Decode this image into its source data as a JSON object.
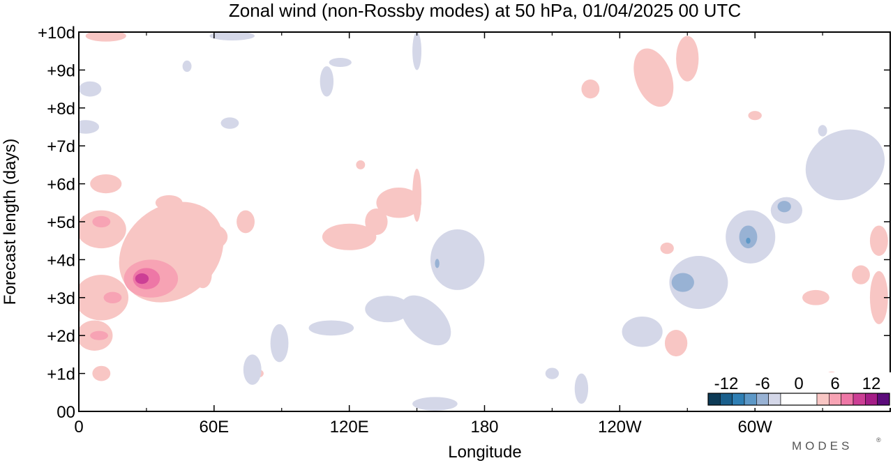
{
  "chart_data": {
    "type": "heatmap",
    "title": "Zonal wind (non-Rossby modes) at 50 hPa,  01/04/2025  00 UTC",
    "xlabel": "Longitude",
    "ylabel": "Forecast length (days)",
    "x_ticks": [
      {
        "lon": 0,
        "label": "0"
      },
      {
        "lon": 60,
        "label": "60E"
      },
      {
        "lon": 120,
        "label": "120E"
      },
      {
        "lon": 180,
        "label": "180"
      },
      {
        "lon": 240,
        "label": "120W"
      },
      {
        "lon": 300,
        "label": "60W"
      }
    ],
    "x_minor_ticks": [
      30,
      90,
      150,
      210,
      270,
      330
    ],
    "xlim": [
      0,
      360
    ],
    "y_ticks": [
      {
        "day": 0,
        "label": "00"
      },
      {
        "day": 1,
        "label": "+1d"
      },
      {
        "day": 2,
        "label": "+2d"
      },
      {
        "day": 3,
        "label": "+3d"
      },
      {
        "day": 4,
        "label": "+4d"
      },
      {
        "day": 5,
        "label": "+5d"
      },
      {
        "day": 6,
        "label": "+6d"
      },
      {
        "day": 7,
        "label": "+7d"
      },
      {
        "day": 8,
        "label": "+8d"
      },
      {
        "day": 9,
        "label": "+9d"
      },
      {
        "day": 10,
        "label": "+10d"
      }
    ],
    "ylim": [
      0,
      10
    ],
    "colorbar": {
      "labels": [
        {
          "value": -12,
          "label": "-12"
        },
        {
          "value": -6,
          "label": "-6"
        },
        {
          "value": 0,
          "label": "0"
        },
        {
          "value": 6,
          "label": "6"
        },
        {
          "value": 12,
          "label": "12"
        }
      ],
      "range": [
        -15,
        15
      ],
      "levels": [
        {
          "from": -15,
          "to": -13,
          "color": "#0d3a56"
        },
        {
          "from": -13,
          "to": -11,
          "color": "#1a5f8c"
        },
        {
          "from": -11,
          "to": -9,
          "color": "#2f7fb4"
        },
        {
          "from": -9,
          "to": -7,
          "color": "#5d98c7"
        },
        {
          "from": -7,
          "to": -5,
          "color": "#98b2d4"
        },
        {
          "from": -5,
          "to": -3,
          "color": "#d4d7e8"
        },
        {
          "from": -3,
          "to": 3,
          "color": "#ffffff"
        },
        {
          "from": 3,
          "to": 5,
          "color": "#f8c6c4"
        },
        {
          "from": 5,
          "to": 7,
          "color": "#f7a3b4"
        },
        {
          "from": 7,
          "to": 9,
          "color": "#ee77a6"
        },
        {
          "from": 9,
          "to": 11,
          "color": "#cc3f95"
        },
        {
          "from": 11,
          "to": 13,
          "color": "#a51d87"
        },
        {
          "from": 13,
          "to": 15,
          "color": "#5c0c7b"
        }
      ]
    },
    "anomalies": [
      {
        "lon": 41,
        "day": 4.2,
        "rl": 25,
        "rd": 1.2,
        "angle": -40,
        "value": 4
      },
      {
        "lon": 32,
        "day": 3.5,
        "rl": 12,
        "rd": 0.5,
        "value": 6
      },
      {
        "lon": 30,
        "day": 3.5,
        "rl": 6,
        "rd": 0.28,
        "value": 8
      },
      {
        "lon": 28,
        "day": 3.5,
        "rl": 3,
        "rd": 0.14,
        "value": 10
      },
      {
        "lon": 10,
        "day": 4.8,
        "rl": 11,
        "rd": 0.5,
        "value": 4
      },
      {
        "lon": 10,
        "day": 3.0,
        "rl": 12,
        "rd": 0.6,
        "value": 4
      },
      {
        "lon": 15,
        "day": 3.0,
        "rl": 4,
        "rd": 0.15,
        "value": 6
      },
      {
        "lon": 7,
        "day": 2.0,
        "rl": 8,
        "rd": 0.4,
        "value": 4
      },
      {
        "lon": 9,
        "day": 2.0,
        "rl": 4,
        "rd": 0.12,
        "value": 6
      },
      {
        "lon": 10,
        "day": 5.0,
        "rl": 4,
        "rd": 0.15,
        "value": 6
      },
      {
        "lon": 12,
        "day": 6.0,
        "rl": 7,
        "rd": 0.25,
        "value": 4
      },
      {
        "lon": 40,
        "day": 5.5,
        "rl": 6,
        "rd": 0.2,
        "value": 4
      },
      {
        "lon": 58,
        "day": 4.6,
        "rl": 8,
        "rd": 0.35,
        "value": 4
      },
      {
        "lon": 74,
        "day": 5.0,
        "rl": 4,
        "rd": 0.3,
        "value": 4
      },
      {
        "lon": 120,
        "day": 4.6,
        "rl": 12,
        "rd": 0.35,
        "value": 4
      },
      {
        "lon": 142,
        "day": 5.5,
        "rl": 10,
        "rd": 0.4,
        "value": 4
      },
      {
        "lon": 132,
        "day": 5.0,
        "rl": 5,
        "rd": 0.35,
        "value": 4
      },
      {
        "lon": 150,
        "day": 5.7,
        "rl": 2,
        "rd": 0.7,
        "value": 4
      },
      {
        "lon": 12,
        "day": 9.9,
        "rl": 9,
        "rd": 0.15,
        "value": 4
      },
      {
        "lon": 255,
        "day": 8.8,
        "rl": 8,
        "rd": 0.8,
        "angle": -20,
        "value": 4
      },
      {
        "lon": 270,
        "day": 9.3,
        "rl": 5,
        "rd": 0.6,
        "value": 4
      },
      {
        "lon": 227,
        "day": 8.5,
        "rl": 4,
        "rd": 0.25,
        "value": 4
      },
      {
        "lon": 265,
        "day": 1.8,
        "rl": 5,
        "rd": 0.35,
        "value": 4
      },
      {
        "lon": 327,
        "day": 3.0,
        "rl": 6,
        "rd": 0.2,
        "value": 4
      },
      {
        "lon": 355,
        "day": 3.0,
        "rl": 4,
        "rd": 0.7,
        "value": 4
      },
      {
        "lon": 355,
        "day": 4.5,
        "rl": 4,
        "rd": 0.4,
        "value": 4
      },
      {
        "lon": 347,
        "day": 3.6,
        "rl": 4,
        "rd": 0.25,
        "value": 4
      },
      {
        "lon": 10,
        "day": 1.0,
        "rl": 4,
        "rd": 0.2,
        "value": 4
      },
      {
        "lon": 80,
        "day": 1.0,
        "rl": 2,
        "rd": 0.1,
        "value": 4
      },
      {
        "lon": 285,
        "day": 0.8,
        "rl": 2,
        "rd": 0.1,
        "value": 4
      },
      {
        "lon": 125,
        "day": 6.5,
        "rl": 2,
        "rd": 0.12,
        "value": 4
      },
      {
        "lon": 261,
        "day": 4.3,
        "rl": 3,
        "rd": 0.15,
        "value": 4
      },
      {
        "lon": 334,
        "day": 0.9,
        "rl": 3,
        "rd": 0.15,
        "value": 4
      },
      {
        "lon": 300,
        "day": 7.8,
        "rl": 3,
        "rd": 0.12,
        "value": 4
      },
      {
        "lon": 55,
        "day": 3.6,
        "rl": 4,
        "rd": 0.35,
        "value": 4
      },
      {
        "lon": 154,
        "day": 2.4,
        "rl": 8,
        "rd": 0.8,
        "angle": -45,
        "value": -4
      },
      {
        "lon": 168,
        "day": 4.0,
        "rl": 12,
        "rd": 0.8,
        "value": -4
      },
      {
        "lon": 137,
        "day": 2.7,
        "rl": 10,
        "rd": 0.35,
        "value": -4
      },
      {
        "lon": 112,
        "day": 2.2,
        "rl": 10,
        "rd": 0.2,
        "value": -4
      },
      {
        "lon": 89,
        "day": 1.8,
        "rl": 4,
        "rd": 0.5,
        "value": -4
      },
      {
        "lon": 77,
        "day": 1.1,
        "rl": 4,
        "rd": 0.4,
        "value": -4
      },
      {
        "lon": 159,
        "day": 3.9,
        "rl": 1,
        "rd": 0.12,
        "value": -6
      },
      {
        "lon": 275,
        "day": 3.4,
        "rl": 13,
        "rd": 0.7,
        "value": -4
      },
      {
        "lon": 268,
        "day": 3.4,
        "rl": 5,
        "rd": 0.25,
        "value": -6
      },
      {
        "lon": 298,
        "day": 4.6,
        "rl": 11,
        "rd": 0.7,
        "value": -4
      },
      {
        "lon": 297,
        "day": 4.6,
        "rl": 4,
        "rd": 0.3,
        "value": -6
      },
      {
        "lon": 297,
        "day": 4.5,
        "rl": 1,
        "rd": 0.08,
        "value": -8
      },
      {
        "lon": 314,
        "day": 5.3,
        "rl": 7,
        "rd": 0.35,
        "value": -4
      },
      {
        "lon": 313,
        "day": 5.4,
        "rl": 3,
        "rd": 0.15,
        "value": -6
      },
      {
        "lon": 340,
        "day": 6.5,
        "rl": 18,
        "rd": 0.9,
        "angle": -25,
        "value": -4
      },
      {
        "lon": 250,
        "day": 2.1,
        "rl": 9,
        "rd": 0.4,
        "value": -4
      },
      {
        "lon": 223,
        "day": 0.6,
        "rl": 3,
        "rd": 0.4,
        "value": -4
      },
      {
        "lon": 210,
        "day": 1.0,
        "rl": 3,
        "rd": 0.15,
        "value": -4
      },
      {
        "lon": 5,
        "day": 8.5,
        "rl": 5,
        "rd": 0.2,
        "value": -4
      },
      {
        "lon": 3,
        "day": 7.5,
        "rl": 6,
        "rd": 0.18,
        "value": -4
      },
      {
        "lon": 67,
        "day": 7.6,
        "rl": 4,
        "rd": 0.15,
        "value": -4
      },
      {
        "lon": 110,
        "day": 8.7,
        "rl": 3,
        "rd": 0.4,
        "value": -4
      },
      {
        "lon": 116,
        "day": 9.2,
        "rl": 5,
        "rd": 0.12,
        "value": -4
      },
      {
        "lon": 68,
        "day": 9.9,
        "rl": 10,
        "rd": 0.12,
        "value": -4
      },
      {
        "lon": 150,
        "day": 9.5,
        "rl": 2,
        "rd": 0.5,
        "value": -4
      },
      {
        "lon": 48,
        "day": 9.1,
        "rl": 2,
        "rd": 0.15,
        "value": -4
      },
      {
        "lon": 330,
        "day": 7.4,
        "rl": 2,
        "rd": 0.15,
        "value": -4
      },
      {
        "lon": 158,
        "day": 0.2,
        "rl": 10,
        "rd": 0.18,
        "value": -4
      }
    ]
  },
  "logo": {
    "text": "MODES",
    "mark": "®"
  }
}
